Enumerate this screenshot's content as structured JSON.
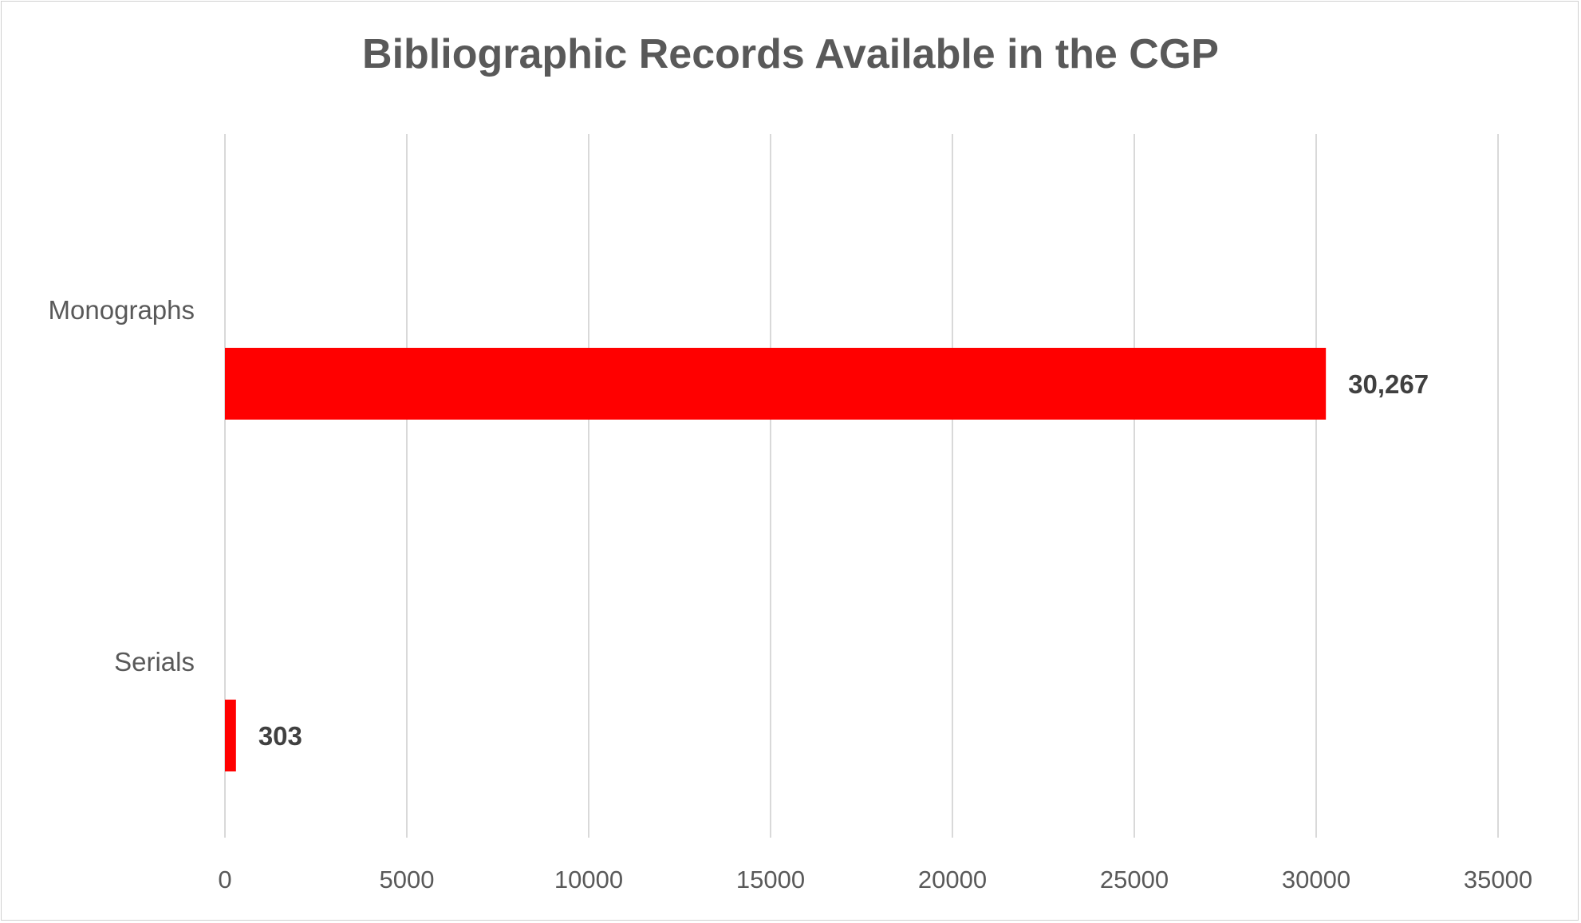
{
  "chart_data": {
    "type": "bar",
    "orientation": "horizontal",
    "title": "Bibliographic Records Available in the CGP",
    "xlabel": "",
    "ylabel": "",
    "categories": [
      "Monographs",
      "Serials"
    ],
    "values": [
      30267,
      303
    ],
    "data_labels": [
      "30,267",
      "303"
    ],
    "xlim": [
      0,
      35000
    ],
    "x_ticks": [
      0,
      5000,
      10000,
      15000,
      20000,
      25000,
      30000,
      35000
    ],
    "x_tick_labels": [
      "0",
      "5000",
      "10000",
      "15000",
      "20000",
      "25000",
      "30000",
      "35000"
    ],
    "grid": "vertical major gridlines",
    "legend": "none",
    "colors": {
      "bar": "#FF0000",
      "grid": "#d9d9d9",
      "text": "#595959",
      "data_label": "#404040"
    }
  }
}
